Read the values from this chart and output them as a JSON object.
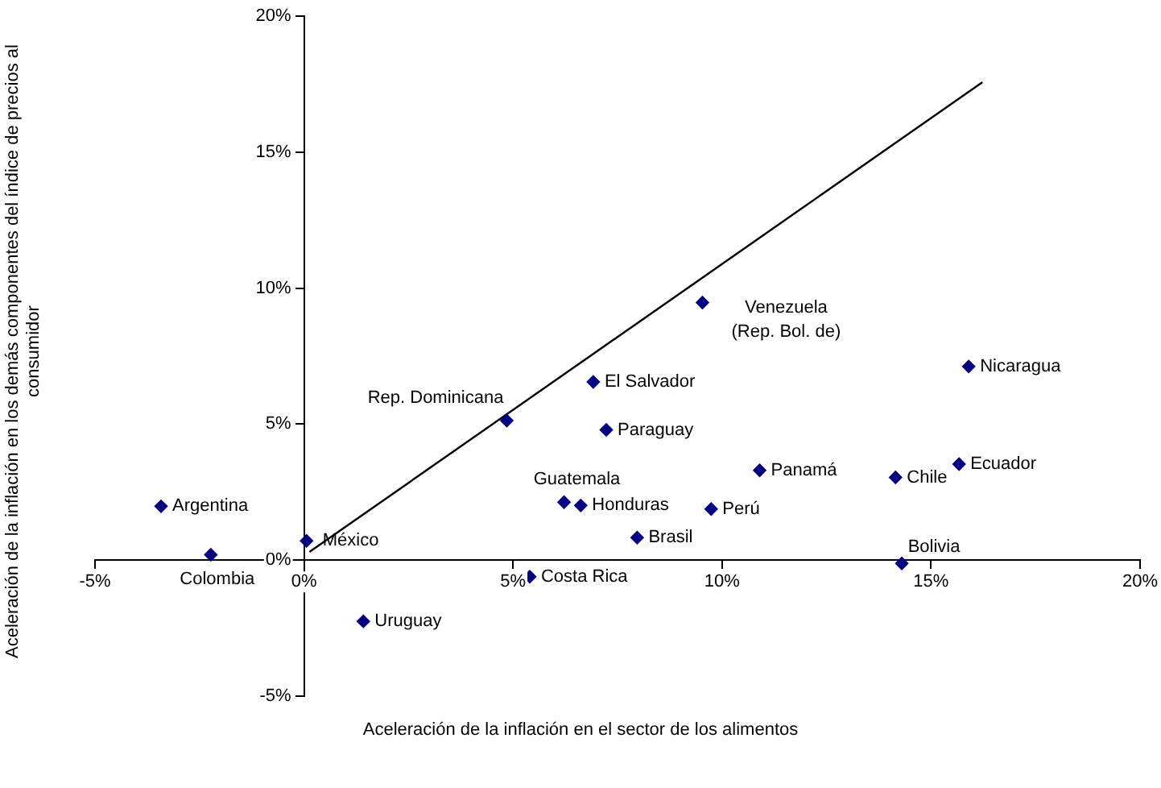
{
  "chart_data": {
    "type": "scatter",
    "xlabel": "Aceleración de la inflación en el sector de los alimentos",
    "ylabel": "Aceleración de la inflación en los demás componentes del índice de precios al consumidor",
    "xlim": [
      -5,
      20
    ],
    "xticks": [
      {
        "value": -5,
        "label": "-5%"
      },
      {
        "value": 0,
        "label": "0%"
      },
      {
        "value": 5,
        "label": "5%"
      },
      {
        "value": 10,
        "label": "10%"
      },
      {
        "value": 15,
        "label": "15%"
      },
      {
        "value": 20,
        "label": "20%"
      }
    ],
    "ylim": [
      -5,
      20
    ],
    "yticks": [
      {
        "value": -5,
        "label": "-5%"
      },
      {
        "value": 0,
        "label": "0%"
      },
      {
        "value": 5,
        "label": "5%"
      },
      {
        "value": 10,
        "label": "10%"
      },
      {
        "value": 15,
        "label": "15%"
      },
      {
        "value": 20,
        "label": "20%"
      }
    ],
    "grid": false,
    "legend": false,
    "marker": "diamond",
    "series": [
      {
        "type": "scatter",
        "color": "#000080",
        "x": [
          -3.42,
          -2.23,
          0.06,
          1.42,
          4.85,
          5.4,
          6.22,
          6.62,
          6.92,
          7.23,
          7.97,
          9.53,
          9.74,
          10.9,
          14.15,
          14.3,
          15.67,
          15.9
        ],
        "values": [
          1.98,
          0.2,
          0.71,
          -2.25,
          5.13,
          -0.61,
          2.13,
          2.01,
          6.55,
          4.79,
          0.83,
          9.47,
          1.88,
          3.3,
          3.04,
          -0.12,
          3.53,
          7.12
        ]
      },
      {
        "type": "line",
        "color": "#000000",
        "marker": "none",
        "line_style": "solid",
        "x": [
          0.13,
          16.23
        ],
        "values": [
          0.3,
          17.57
        ]
      }
    ],
    "annotations": [
      {
        "text": "Argentina",
        "x": -3.42,
        "y": 1.98
      },
      {
        "text": "Colombia",
        "x": -2.23,
        "y": 0.2
      },
      {
        "text": "México",
        "x": 0.06,
        "y": 0.71
      },
      {
        "text": "Uruguay",
        "x": 1.42,
        "y": -2.25
      },
      {
        "text": "Rep. Dominicana",
        "x": 4.85,
        "y": 5.13
      },
      {
        "text": "Costa Rica",
        "x": 5.4,
        "y": -0.61
      },
      {
        "text": "Guatemala",
        "x": 6.22,
        "y": 2.13
      },
      {
        "text": "Honduras",
        "x": 6.62,
        "y": 2.01
      },
      {
        "text": "El Salvador",
        "x": 6.92,
        "y": 6.55
      },
      {
        "text": "Paraguay",
        "x": 7.23,
        "y": 4.79
      },
      {
        "text": "Brasil",
        "x": 7.97,
        "y": 0.83
      },
      {
        "text": "Venezuela (Rep. Bol. de)",
        "x": 9.53,
        "y": 9.47
      },
      {
        "text": "Perú",
        "x": 9.74,
        "y": 1.88
      },
      {
        "text": "Panamá",
        "x": 10.9,
        "y": 3.3
      },
      {
        "text": "Chile",
        "x": 14.15,
        "y": 3.04
      },
      {
        "text": "Bolivia",
        "x": 14.3,
        "y": -0.12
      },
      {
        "text": "Ecuador",
        "x": 15.67,
        "y": 3.53
      },
      {
        "text": "Nicaragua",
        "x": 15.9,
        "y": 7.12
      }
    ]
  }
}
